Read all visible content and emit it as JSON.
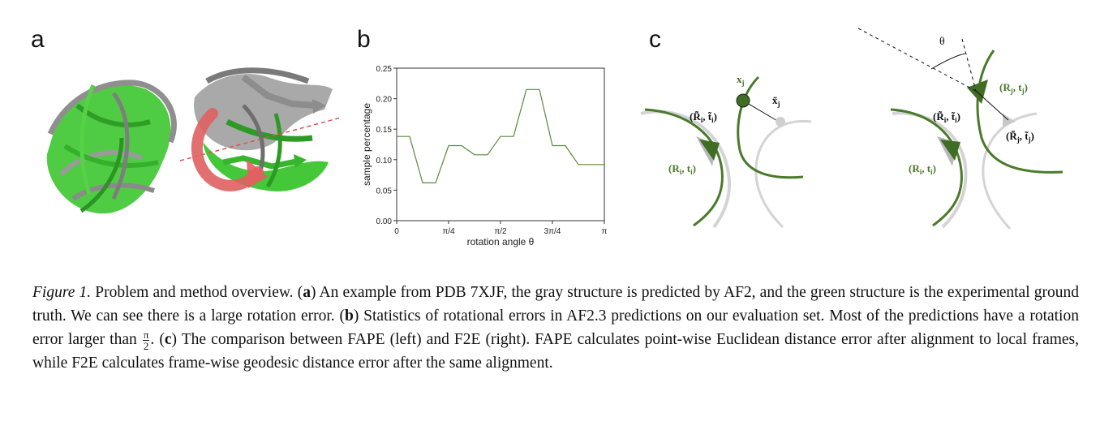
{
  "panels": {
    "a": "a",
    "b": "b",
    "c": "c"
  },
  "chart_data": {
    "type": "line",
    "x_ticks": [
      "0",
      "π/4",
      "π/2",
      "3π/4",
      "π"
    ],
    "x_tick_values": [
      0,
      0.785,
      1.571,
      2.356,
      3.142
    ],
    "y_ticks": [
      "0.00",
      "0.05",
      "0.10",
      "0.15",
      "0.20",
      "0.25"
    ],
    "xlabel": "rotation angle θ",
    "ylabel": "sample percentage",
    "xlim": [
      0,
      3.142
    ],
    "ylim": [
      0,
      0.25
    ],
    "series": [
      {
        "color": "#5a8a3c",
        "x": [
          0,
          0.196,
          0.393,
          0.589,
          0.785,
          0.982,
          1.178,
          1.374,
          1.571,
          1.767,
          1.963,
          2.16,
          2.356,
          2.552,
          2.749,
          2.945,
          3.142
        ],
        "y": [
          0.138,
          0.138,
          0.062,
          0.062,
          0.123,
          0.123,
          0.108,
          0.108,
          0.138,
          0.138,
          0.215,
          0.215,
          0.123,
          0.123,
          0.092,
          0.092,
          0.092
        ]
      }
    ],
    "grid": false
  },
  "diagram_c": {
    "theta": "θ",
    "xj": "x",
    "xj_sub": "j",
    "xj_tilde": "x̃",
    "xj_tilde_sub": "j",
    "fape_pred_frame": "(R̃",
    "fape_pred_frame_sub": "i",
    "fape_pred_frame_t": ", t̃",
    "fape_pred_frame_t_sub": "i",
    "fape_true_frame": "(R",
    "fape_true_frame_sub": "i",
    "fape_true_frame_t": ", t",
    "fape_true_frame_t_sub": "i",
    "f2e_pred_i": "(R̃",
    "f2e_pred_i_sub": "i",
    "f2e_pred_i_t": ", t̃",
    "f2e_pred_i_t_sub": "i",
    "f2e_true_i": "(R",
    "f2e_true_i_sub": "i",
    "f2e_true_i_t": ", t",
    "f2e_true_i_t_sub": "i",
    "f2e_true_j": "(R",
    "f2e_true_j_sub": "j",
    "f2e_true_j_t": ", t",
    "f2e_true_j_t_sub": "j",
    "f2e_pred_j": "(R̃",
    "f2e_pred_j_sub": "j",
    "f2e_pred_j_t": ", t̃",
    "f2e_pred_j_t_sub": "j",
    "close_paren": ")",
    "colors": {
      "green": "#4a7a2a",
      "gray": "#c8c8c8"
    }
  },
  "caption": {
    "label": "Figure 1.",
    "t1": " Problem and method overview. (",
    "a": "a",
    "t2": ") An example from PDB 7XJF, the gray structure is predicted by AF2, and the green structure is the experimental ground truth. We can see there is a large rotation error. (",
    "b": "b",
    "t3": ") Statistics of rotational errors in AF2.3 predictions on our evaluation set. Most of the predictions have a rotation error larger than ",
    "frac_num": "π",
    "frac_den": "2",
    "t4": ". (",
    "c": "c",
    "t5": ") The comparison between FAPE (left) and F2E (right). FAPE calculates point-wise Euclidean distance error after alignment to local frames, while F2E calculates frame-wise geodesic distance error after the same alignment."
  }
}
